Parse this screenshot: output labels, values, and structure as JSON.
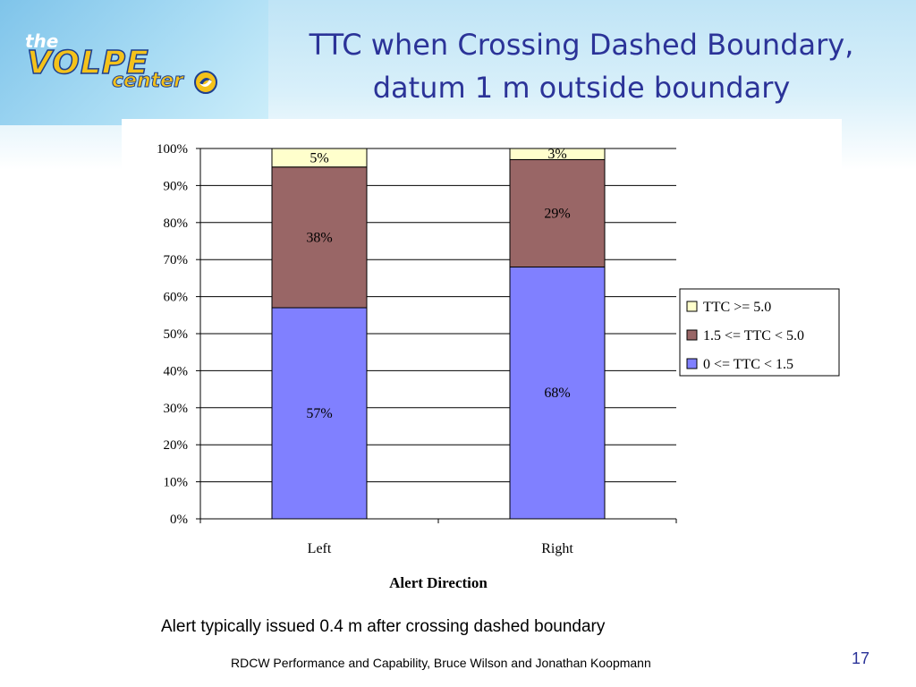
{
  "slide": {
    "logo_text": "the VOLPE center",
    "title_line1": "TTC when Crossing Dashed Boundary,",
    "title_line2": "datum 1 m outside boundary",
    "subtitle": "Alert typically issued 0.4 m after crossing dashed boundary",
    "footer": "RDCW Performance and Capability, Bruce Wilson and Jonathan Koopmann",
    "page_number": "17"
  },
  "chart_data": {
    "type": "bar",
    "stacked": true,
    "percent_stacked": true,
    "categories": [
      "Left",
      "Right"
    ],
    "xlabel": "Alert Direction",
    "ylabel": "",
    "ylim": [
      0,
      100
    ],
    "yticks": [
      "0%",
      "10%",
      "20%",
      "30%",
      "40%",
      "50%",
      "60%",
      "70%",
      "80%",
      "90%",
      "100%"
    ],
    "grid": true,
    "legend_position": "right",
    "series": [
      {
        "name": "0 <= TTC < 1.5",
        "values": [
          57,
          68
        ],
        "labels": [
          "57%",
          "68%"
        ],
        "color": "#8080ff"
      },
      {
        "name": "1.5 <= TTC < 5.0",
        "values": [
          38,
          29
        ],
        "labels": [
          "38%",
          "29%"
        ],
        "color": "#996666"
      },
      {
        "name": "TTC >= 5.0",
        "values": [
          5,
          3
        ],
        "labels": [
          "5%",
          "3%"
        ],
        "color": "#ffffcc"
      }
    ]
  }
}
